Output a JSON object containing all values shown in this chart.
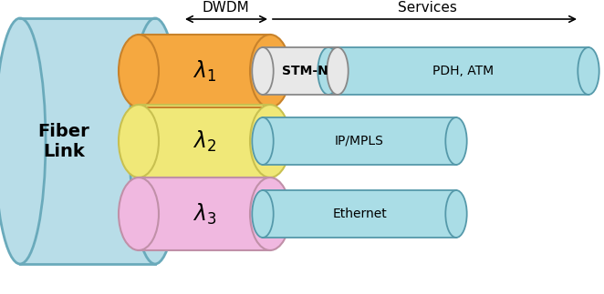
{
  "fig_width": 6.62,
  "fig_height": 3.23,
  "bg_color": "#ffffff",
  "fiber_link_color": "#b8dde8",
  "fiber_link_border": "#6aaabb",
  "lambda1_color": "#f5a840",
  "lambda1_border": "#c8822a",
  "lambda2_color": "#f0e878",
  "lambda2_border": "#c8c050",
  "lambda3_color": "#f0b8e0",
  "lambda3_border": "#c090a8",
  "stm_color": "#e8e8e8",
  "stm_border": "#888888",
  "service_color": "#aadde6",
  "service_border": "#5599aa",
  "dwdm_label": "DWDM",
  "services_label": "Services",
  "fiber_label_line1": "Fiber",
  "fiber_label_line2": "Link"
}
